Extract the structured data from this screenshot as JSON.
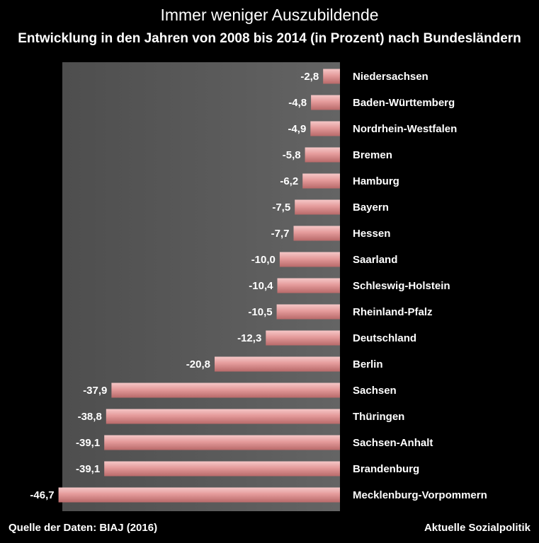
{
  "chart_data": {
    "type": "bar",
    "orientation": "horizontal",
    "title": "Immer weniger Auszubildende",
    "subtitle": "Entwicklung in den Jahren von 2008 bis 2014 (in Prozent) nach Bundesländern",
    "xlim": [
      -50,
      0
    ],
    "categories": [
      "Niedersachsen",
      "Baden-Württemberg",
      "Nordrhein-Westfalen",
      "Bremen",
      "Hamburg",
      "Bayern",
      "Hessen",
      "Saarland",
      "Schleswig-Holstein",
      "Rheinland-Pfalz",
      "Deutschland",
      "Berlin",
      "Sachsen",
      "Thüringen",
      "Sachsen-Anhalt",
      "Brandenburg",
      "Mecklenburg-Vorpommern"
    ],
    "values": [
      -2.8,
      -4.8,
      -4.9,
      -5.8,
      -6.2,
      -7.5,
      -7.7,
      -10.0,
      -10.4,
      -10.5,
      -12.3,
      -20.8,
      -37.9,
      -38.8,
      -39.1,
      -39.1,
      -46.7
    ],
    "value_labels": [
      "-2,8",
      "-4,8",
      "-4,9",
      "-5,8",
      "-6,2",
      "-7,5",
      "-7,7",
      "-10,0",
      "-10,4",
      "-10,5",
      "-12,3",
      "-20,8",
      "-37,9",
      "-38,8",
      "-39,1",
      "-39,1",
      "-46,7"
    ],
    "bar_color": "#e8a0a0",
    "plot_bg": "#5a5a5a"
  },
  "footer": {
    "source": "Quelle der Daten: BIAJ (2016)",
    "publisher": "Aktuelle Sozialpolitik"
  }
}
